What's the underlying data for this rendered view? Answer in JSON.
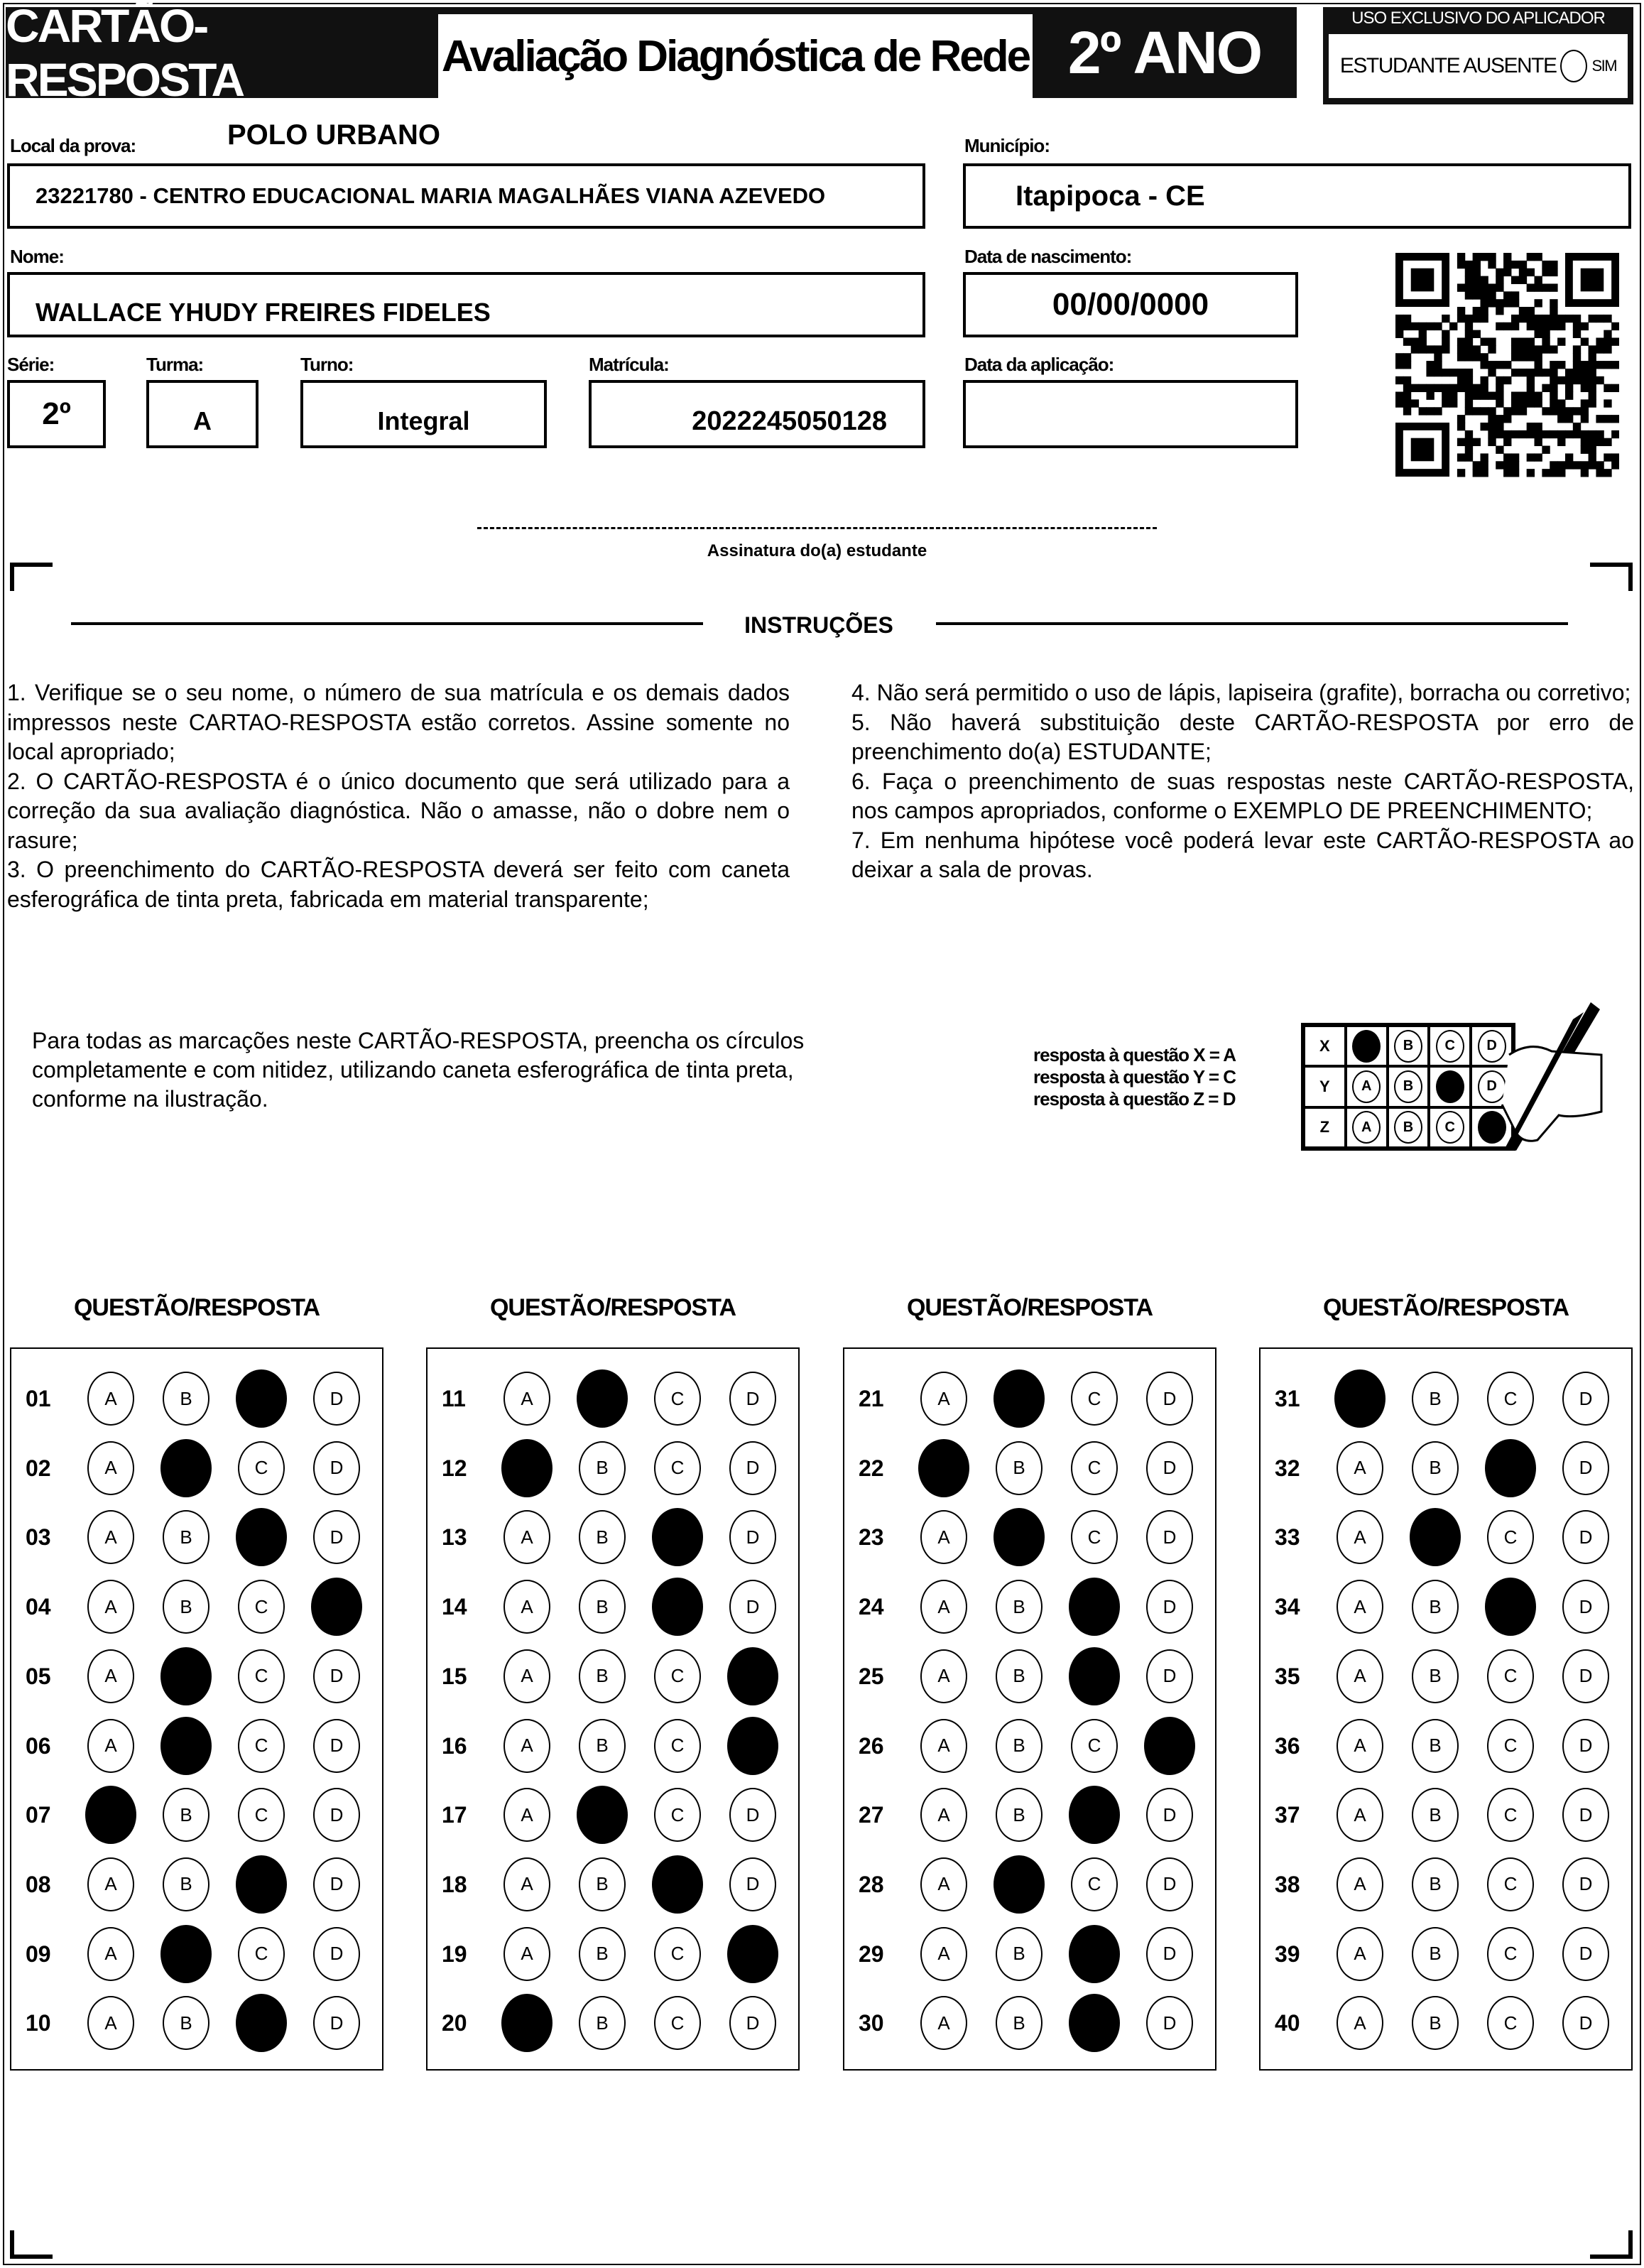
{
  "header": {
    "card_title": "CARTÃO-RESPOSTA",
    "exam_title": "Avaliação Diagnóstica de Rede",
    "grade_title": "2º ANO",
    "applicator_title": "USO EXCLUSIVO DO APLICADOR",
    "absent_label": "ESTUDANTE AUSENTE",
    "absent_option": "SIM"
  },
  "fields": {
    "local_label": "Local da prova:",
    "polo": "POLO URBANO",
    "local_value": "23221780 - CENTRO EDUCACIONAL MARIA MAGALHÃES VIANA AZEVEDO",
    "municipio_label": "Município:",
    "municipio_value": "Itapipoca - CE",
    "nome_label": "Nome:",
    "nome_value": "WALLACE YHUDY FREIRES FIDELES",
    "nascimento_label": "Data de nascimento:",
    "nascimento_value": "00/00/0000",
    "serie_label": "Série:",
    "serie_value": "2º",
    "turma_label": "Turma:",
    "turma_value": "A",
    "turno_label": "Turno:",
    "turno_value": "Integral",
    "matricula_label": "Matrícula:",
    "matricula_value": "2022245050128",
    "aplicacao_label": "Data da aplicação:",
    "aplicacao_value": ""
  },
  "signature_label": "Assinatura do(a) estudante",
  "instructions": {
    "title": "INSTRUÇÕES",
    "left": [
      "1. Verifique se o seu nome, o número de sua matrícula e os demais dados impressos neste CARTAO-RESPOSTA estão corretos. Assine somente no local apropriado;",
      "2. O CARTÃO-RESPOSTA é o único documento que será utilizado para a correção da sua avaliação diagnóstica. Não o amasse, não o dobre nem o rasure;",
      "3. O preenchimento do CARTÃO-RESPOSTA deverá ser feito com caneta esferográfica de tinta preta, fabricada em material transparente;"
    ],
    "right": [
      "4. Não será permitido o uso de lápis, lapiseira (grafite), borracha ou corretivo;",
      "5. Não haverá substituição deste CARTÃO-RESPOSTA por erro de preenchimento do(a) ESTUDANTE;",
      "6. Faça o preenchimento de suas respostas neste CARTÃO-RESPOSTA, nos campos apropriados, conforme o EXEMPLO DE PREENCHIMENTO;",
      "7. Em nenhuma hipótese você poderá levar este CARTÃO-RESPOSTA ao deixar a sala de provas."
    ]
  },
  "fill_instruction": "Para todas as marcações neste CARTÃO-RESPOSTA, preencha os círculos completamente e com nitidez, utilizando caneta esferográfica de tinta preta, conforme na ilustração.",
  "example": {
    "lines": [
      "resposta à questão X = A",
      "resposta à questão Y = C",
      "resposta à questão Z = D"
    ],
    "rows": [
      {
        "q": "X",
        "answer": "A"
      },
      {
        "q": "Y",
        "answer": "C"
      },
      {
        "q": "Z",
        "answer": "D"
      }
    ],
    "options": [
      "A",
      "B",
      "C",
      "D"
    ]
  },
  "answer_sheet": {
    "heading": "QUESTÃO/RESPOSTA",
    "options": [
      "A",
      "B",
      "C",
      "D"
    ],
    "columns": [
      [
        {
          "n": "01",
          "a": "C"
        },
        {
          "n": "02",
          "a": "B"
        },
        {
          "n": "03",
          "a": "C"
        },
        {
          "n": "04",
          "a": "D"
        },
        {
          "n": "05",
          "a": "B"
        },
        {
          "n": "06",
          "a": "B"
        },
        {
          "n": "07",
          "a": "A"
        },
        {
          "n": "08",
          "a": "C"
        },
        {
          "n": "09",
          "a": "B"
        },
        {
          "n": "10",
          "a": "C"
        }
      ],
      [
        {
          "n": "11",
          "a": "B"
        },
        {
          "n": "12",
          "a": "A"
        },
        {
          "n": "13",
          "a": "C"
        },
        {
          "n": "14",
          "a": "C"
        },
        {
          "n": "15",
          "a": "D"
        },
        {
          "n": "16",
          "a": "D"
        },
        {
          "n": "17",
          "a": "B"
        },
        {
          "n": "18",
          "a": "C"
        },
        {
          "n": "19",
          "a": "D"
        },
        {
          "n": "20",
          "a": "A"
        }
      ],
      [
        {
          "n": "21",
          "a": "B"
        },
        {
          "n": "22",
          "a": "A"
        },
        {
          "n": "23",
          "a": "B"
        },
        {
          "n": "24",
          "a": "C"
        },
        {
          "n": "25",
          "a": "C"
        },
        {
          "n": "26",
          "a": "D"
        },
        {
          "n": "27",
          "a": "C"
        },
        {
          "n": "28",
          "a": "B"
        },
        {
          "n": "29",
          "a": "C"
        },
        {
          "n": "30",
          "a": "C"
        }
      ],
      [
        {
          "n": "31",
          "a": "A"
        },
        {
          "n": "32",
          "a": "C"
        },
        {
          "n": "33",
          "a": "B"
        },
        {
          "n": "34",
          "a": "C"
        },
        {
          "n": "35",
          "a": ""
        },
        {
          "n": "36",
          "a": ""
        },
        {
          "n": "37",
          "a": ""
        },
        {
          "n": "38",
          "a": ""
        },
        {
          "n": "39",
          "a": ""
        },
        {
          "n": "40",
          "a": ""
        }
      ]
    ]
  }
}
